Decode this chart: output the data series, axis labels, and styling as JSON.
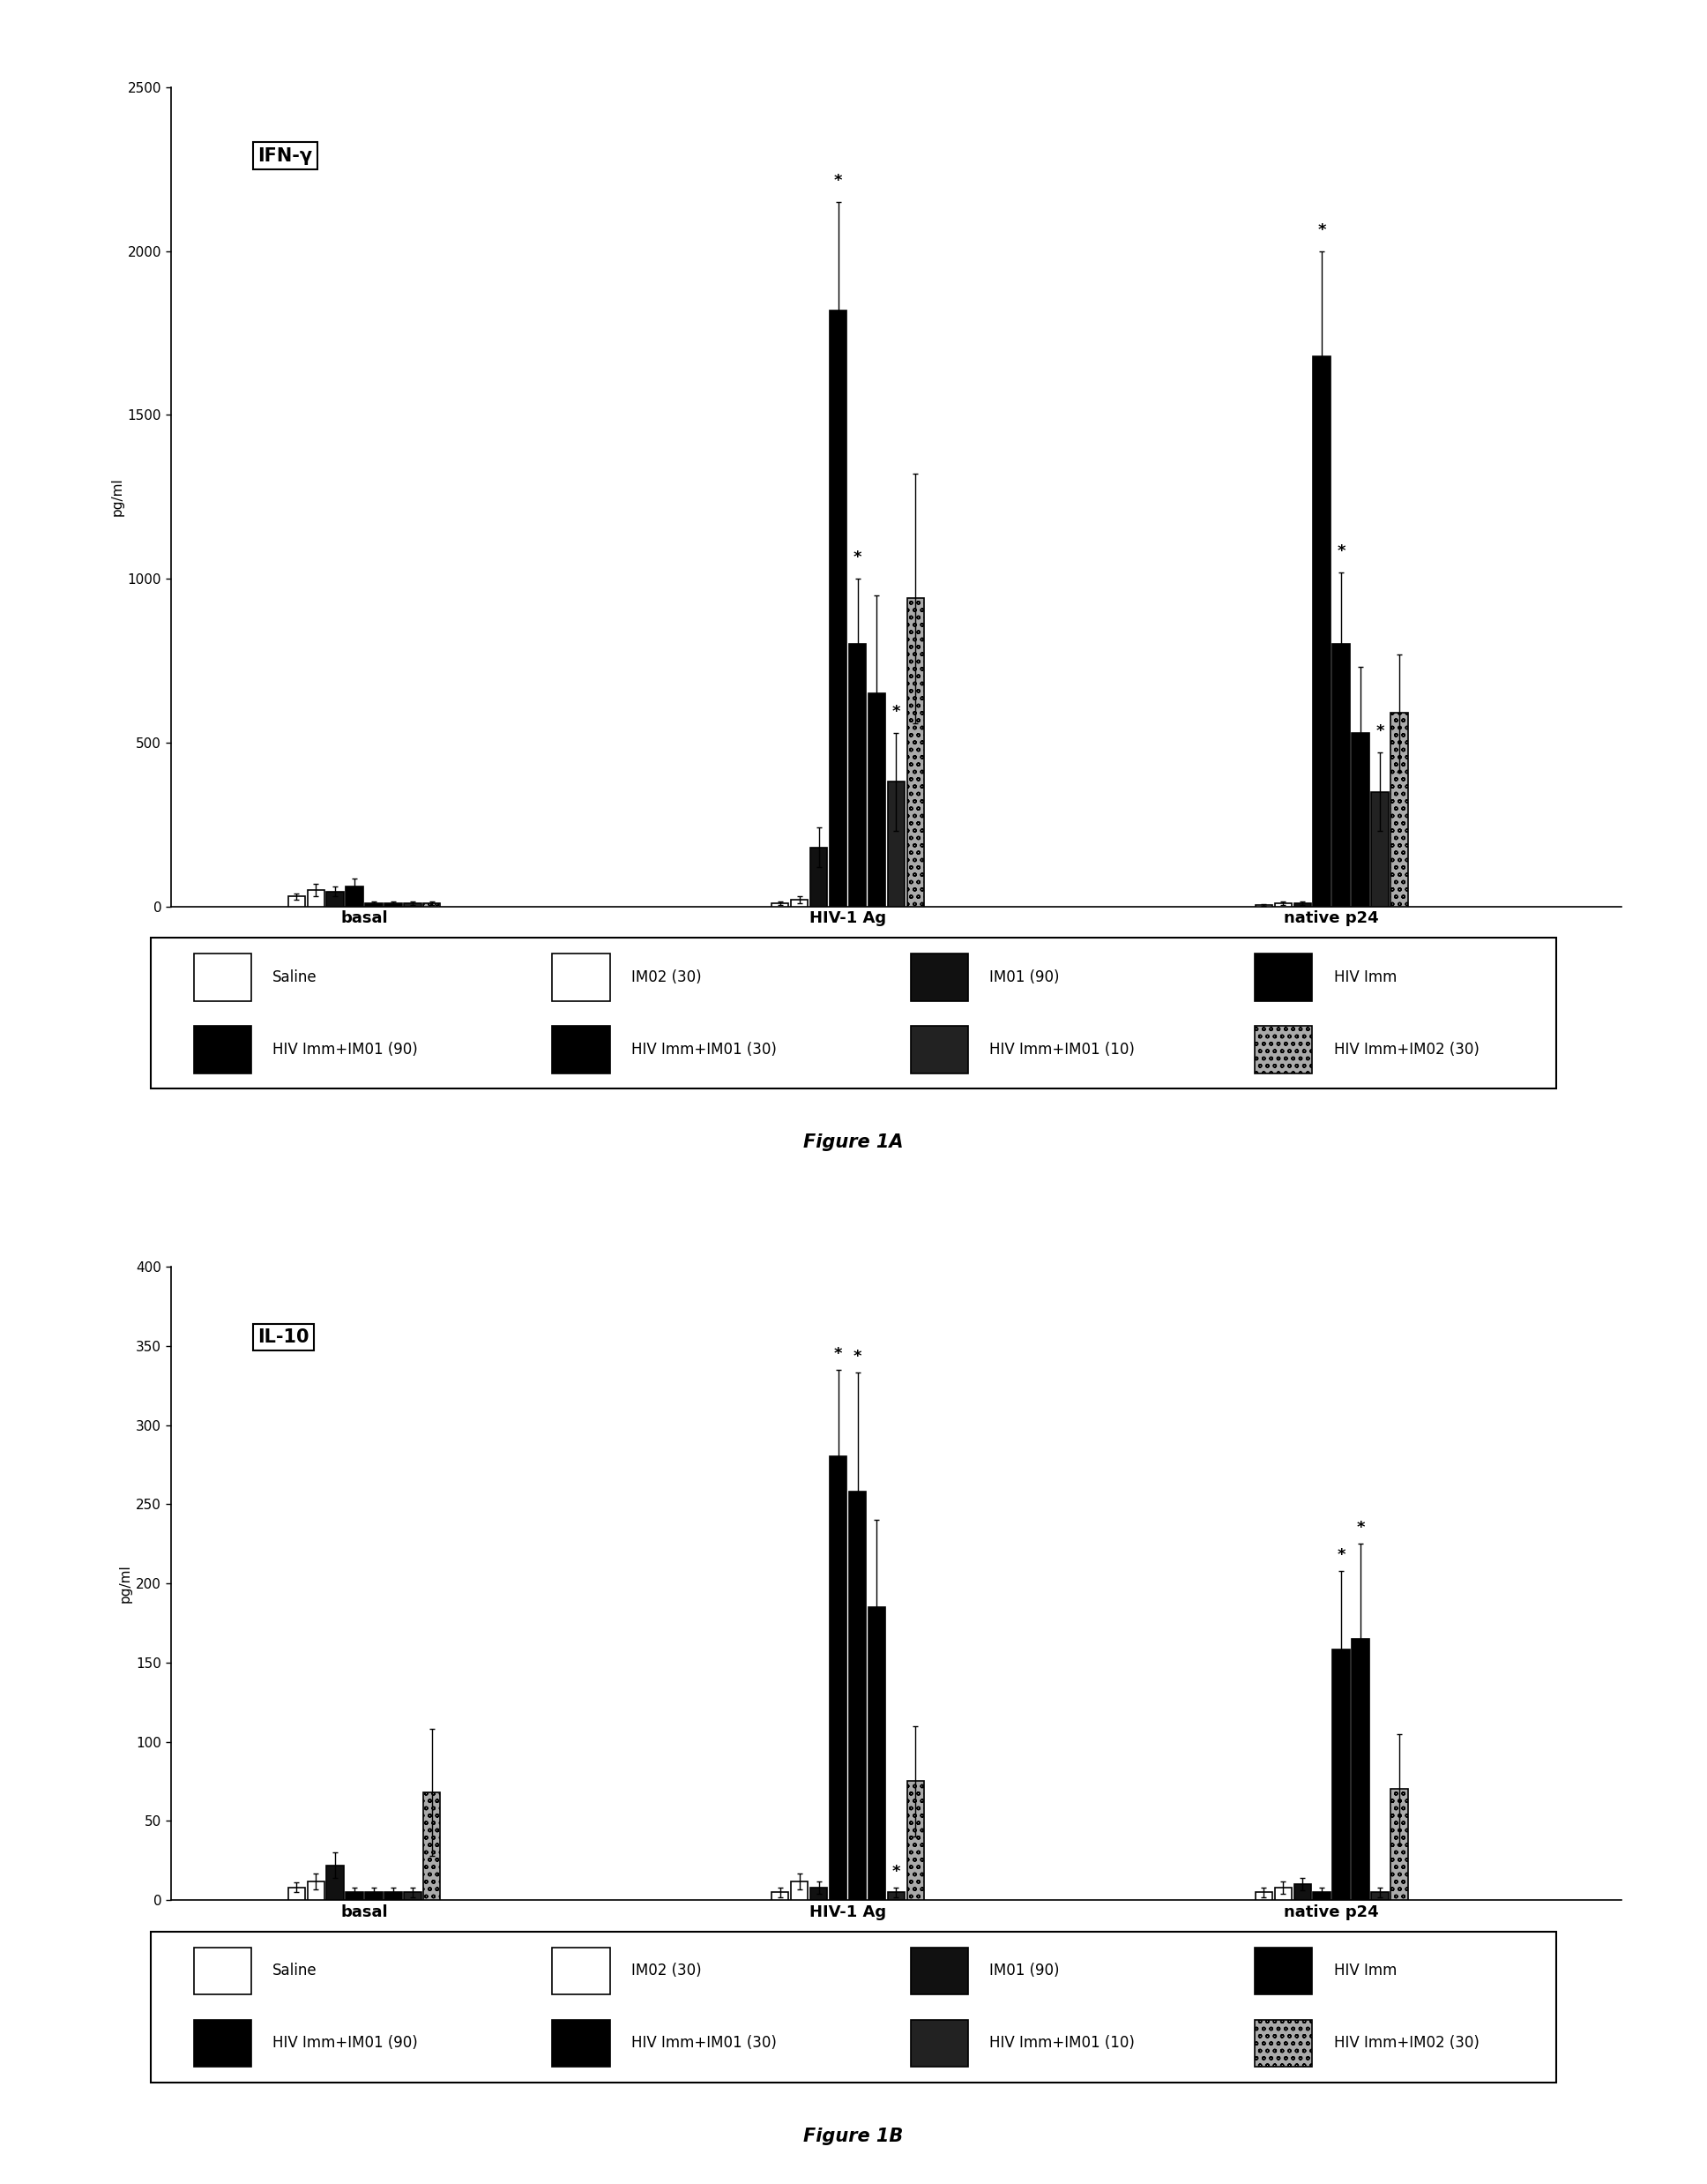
{
  "fig1A": {
    "title_box": "IFN-γ",
    "ylabel": "pg/ml",
    "ylim": [
      0,
      2500
    ],
    "yticks": [
      0,
      500,
      1000,
      1500,
      2000,
      2500
    ],
    "groups": [
      "basal",
      "HIV-1 Ag",
      "native p24"
    ],
    "bars": {
      "basal": [
        30,
        50,
        45,
        60,
        10,
        10,
        10,
        10
      ],
      "HIV-1 Ag": [
        10,
        20,
        180,
        1820,
        800,
        650,
        380,
        940
      ],
      "native p24": [
        5,
        10,
        10,
        1680,
        800,
        530,
        350,
        590
      ]
    },
    "errors": {
      "basal": [
        10,
        20,
        15,
        25,
        5,
        5,
        5,
        5
      ],
      "HIV-1 Ag": [
        5,
        10,
        60,
        330,
        200,
        300,
        150,
        380
      ],
      "native p24": [
        3,
        5,
        5,
        320,
        220,
        200,
        120,
        180
      ]
    },
    "significance": {
      "basal": [
        false,
        false,
        false,
        false,
        false,
        false,
        false,
        false
      ],
      "HIV-1 Ag": [
        false,
        false,
        false,
        true,
        true,
        false,
        true,
        false
      ],
      "native p24": [
        false,
        false,
        false,
        true,
        true,
        false,
        true,
        false
      ]
    },
    "figure_label": "Figure 1A"
  },
  "fig1B": {
    "title_box": "IL-10",
    "ylabel": "pg/ml",
    "ylim": [
      0,
      400
    ],
    "yticks": [
      0,
      50,
      100,
      150,
      200,
      250,
      300,
      350,
      400
    ],
    "groups": [
      "basal",
      "HIV-1 Ag",
      "native p24"
    ],
    "bars": {
      "basal": [
        8,
        12,
        22,
        5,
        5,
        5,
        5,
        68
      ],
      "HIV-1 Ag": [
        5,
        12,
        8,
        280,
        258,
        185,
        5,
        75
      ],
      "native p24": [
        5,
        8,
        10,
        5,
        158,
        165,
        5,
        70
      ]
    },
    "errors": {
      "basal": [
        3,
        5,
        8,
        3,
        3,
        3,
        3,
        40
      ],
      "HIV-1 Ag": [
        3,
        5,
        4,
        55,
        75,
        55,
        3,
        35
      ],
      "native p24": [
        3,
        4,
        4,
        3,
        50,
        60,
        3,
        35
      ]
    },
    "significance": {
      "basal": [
        false,
        false,
        false,
        false,
        false,
        false,
        false,
        false
      ],
      "HIV-1 Ag": [
        false,
        false,
        false,
        true,
        true,
        false,
        true,
        false
      ],
      "native p24": [
        false,
        false,
        false,
        false,
        true,
        true,
        false,
        false
      ]
    },
    "figure_label": "Figure 1B"
  },
  "legend_labels": [
    "Saline",
    "IM02 (30)",
    "IM01 (90)",
    "HIV Imm",
    "HIV Imm+IM01 (90)",
    "HIV Imm+IM01 (30)",
    "HIV Imm+IM01 (10)",
    "HIV Imm+IM02 (30)"
  ],
  "background_color": "white",
  "bar_width": 0.1,
  "group_centers": [
    1.0,
    3.5,
    6.0
  ],
  "xlim": [
    0,
    7.5
  ]
}
